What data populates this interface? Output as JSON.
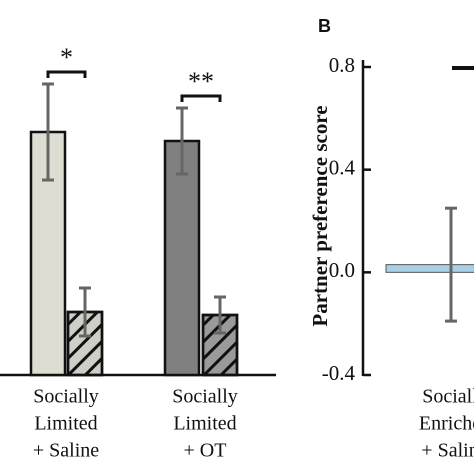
{
  "chart_data": [
    {
      "type": "bar",
      "categories": [
        [
          "Socially",
          "Limited",
          "+ Saline"
        ],
        [
          "Socially",
          "Limited",
          "+ OT"
        ]
      ],
      "series": [
        {
          "colors": [
            "#deddd2",
            "#808080"
          ],
          "values": [
            0.81,
            0.78
          ],
          "errors": [
            0.16,
            0.11
          ],
          "hatch": false
        },
        {
          "colors": [
            "#cfcfc8",
            "#9a9a9a"
          ],
          "values": [
            0.21,
            0.2
          ],
          "errors": [
            0.08,
            0.06
          ],
          "hatch": true
        }
      ],
      "annotations": [
        "*",
        "**"
      ],
      "ylim": [
        0,
        1
      ]
    },
    {
      "type": "bar",
      "title": "B",
      "ylabel": "Partner preference score",
      "categories": [
        [
          "Sociall",
          "Enriche",
          "+ Salin"
        ]
      ],
      "series": [
        {
          "colors": [
            "#a9cfe6"
          ],
          "values": [
            0.03
          ],
          "errors": [
            0.22
          ],
          "hatch": false
        }
      ],
      "ylim": [
        -0.4,
        0.8
      ],
      "yticks": [
        {
          "value": 0.8,
          "label": "0.8"
        },
        {
          "value": 0.4,
          "label": "0.4"
        },
        {
          "value": 0,
          "label": "0.0"
        },
        {
          "value": -0.4,
          "label": "-0.4"
        }
      ]
    }
  ]
}
